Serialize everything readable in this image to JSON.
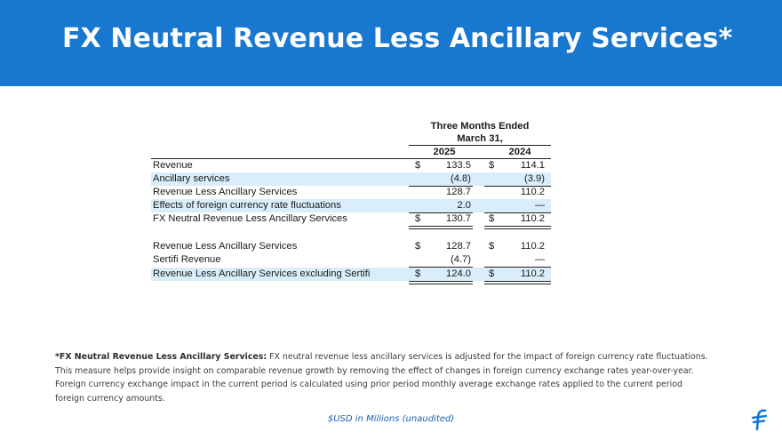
{
  "header": {
    "title": "FX Neutral Revenue Less Ancillary Services*",
    "bg_color": "#1877cf"
  },
  "table": {
    "period_line1": "Three Months Ended",
    "period_line2": "March 31,",
    "years": [
      "2025",
      "2024"
    ],
    "rows": [
      {
        "label": "Revenue",
        "cur_a": "$",
        "a": "133.5",
        "cur_b": "$",
        "b": "114.1"
      },
      {
        "label": "Ancillary services",
        "cur_a": "",
        "a": "(4.8)",
        "cur_b": "",
        "b": "(3.9)"
      },
      {
        "label": "Revenue Less Ancillary Services",
        "cur_a": "",
        "a": "128.7",
        "cur_b": "",
        "b": "110.2"
      },
      {
        "label": "Effects of foreign currency rate fluctuations",
        "cur_a": "",
        "a": "2.0",
        "cur_b": "",
        "b": "—"
      },
      {
        "label": "FX Neutral Revenue Less Ancillary Services",
        "cur_a": "$",
        "a": "130.7",
        "cur_b": "$",
        "b": "110.2"
      },
      {
        "label": "Revenue Less Ancillary Services",
        "cur_a": "$",
        "a": "128.7",
        "cur_b": "$",
        "b": "110.2"
      },
      {
        "label": "Sertifi Revenue",
        "cur_a": "",
        "a": "(4.7)",
        "cur_b": "",
        "b": "—"
      },
      {
        "label": "Revenue Less Ancillary Services excluding Sertifi",
        "cur_a": "$",
        "a": "124.0",
        "cur_b": "$",
        "b": "110.2"
      }
    ],
    "shade_color": "#d9eefa"
  },
  "footnote": {
    "bold": "*FX Neutral Revenue Less Ancillary Services:",
    "text": " FX neutral revenue less ancillary services is adjusted for the impact of foreign currency rate fluctuations. This measure helps provide insight on comparable revenue growth by removing the effect of changes in foreign currency exchange rates year-over-year. Foreign currency exchange impact in the current period is calculated using prior period monthly average exchange rates applied to the current period foreign currency amounts."
  },
  "units_note": "$USD in Millions (unaudited)",
  "logo_icon": "flywire-logo-icon"
}
